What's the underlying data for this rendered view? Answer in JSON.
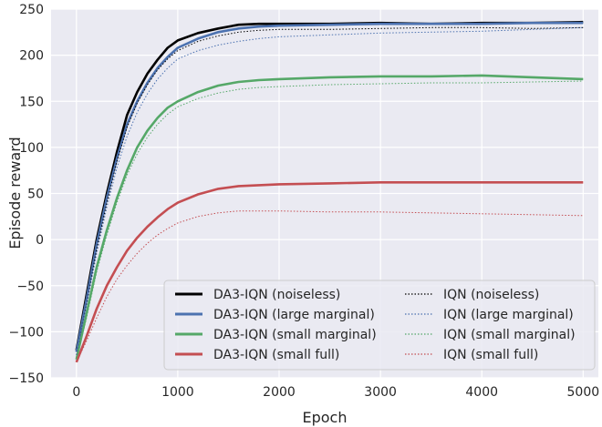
{
  "chart_data": {
    "type": "line",
    "title": "",
    "xlabel": "Epoch",
    "ylabel": "Episode reward",
    "xlim": [
      -250,
      5150
    ],
    "ylim": [
      -150,
      250
    ],
    "xticks": [
      0,
      1000,
      2000,
      3000,
      4000,
      5000
    ],
    "yticks": [
      -150,
      -100,
      -50,
      0,
      50,
      100,
      150,
      200,
      250
    ],
    "grid": true,
    "background": "#eaeaf2",
    "legend": {
      "placement": "bottom-right",
      "columns": 2
    },
    "series": [
      {
        "name": "DA3-IQN (noiseless)",
        "color": "#000000",
        "style": "solid",
        "x": [
          0,
          100,
          200,
          300,
          400,
          500,
          600,
          700,
          800,
          900,
          1000,
          1200,
          1400,
          1600,
          1800,
          2000,
          2500,
          3000,
          3500,
          4000,
          4500,
          5000
        ],
        "y": [
          -120,
          -60,
          0,
          50,
          95,
          135,
          160,
          180,
          195,
          208,
          216,
          224,
          229,
          233,
          234,
          234,
          234,
          235,
          234,
          235,
          235,
          236
        ]
      },
      {
        "name": "DA3-IQN (large marginal)",
        "color": "#4c72b0",
        "style": "solid",
        "x": [
          0,
          100,
          200,
          300,
          400,
          500,
          600,
          700,
          800,
          900,
          1000,
          1200,
          1400,
          1600,
          1800,
          2000,
          2500,
          3000,
          3500,
          4000,
          4500,
          5000
        ],
        "y": [
          -122,
          -65,
          -5,
          45,
          88,
          125,
          150,
          170,
          186,
          198,
          208,
          218,
          225,
          229,
          231,
          232,
          233,
          234,
          234,
          234,
          235,
          235
        ]
      },
      {
        "name": "DA3-IQN (small marginal)",
        "color": "#55a868",
        "style": "solid",
        "x": [
          0,
          100,
          200,
          300,
          400,
          500,
          600,
          700,
          800,
          900,
          1000,
          1200,
          1400,
          1600,
          1800,
          2000,
          2500,
          3000,
          3500,
          4000,
          4500,
          5000
        ],
        "y": [
          -130,
          -80,
          -30,
          10,
          45,
          75,
          100,
          118,
          132,
          143,
          150,
          160,
          167,
          171,
          173,
          174,
          176,
          177,
          177,
          178,
          176,
          174
        ]
      },
      {
        "name": "DA3-IQN (small full)",
        "color": "#c44e52",
        "style": "solid",
        "x": [
          0,
          100,
          200,
          300,
          400,
          500,
          600,
          700,
          800,
          900,
          1000,
          1200,
          1400,
          1600,
          1800,
          2000,
          2500,
          3000,
          3500,
          4000,
          4500,
          5000
        ],
        "y": [
          -133,
          -105,
          -75,
          -50,
          -30,
          -12,
          2,
          14,
          24,
          33,
          40,
          49,
          55,
          58,
          59,
          60,
          61,
          62,
          62,
          62,
          62,
          62
        ]
      },
      {
        "name": "IQN (noiseless)",
        "color": "#000000",
        "style": "dotted",
        "x": [
          0,
          100,
          200,
          300,
          400,
          500,
          600,
          700,
          800,
          900,
          1000,
          1200,
          1400,
          1600,
          1800,
          2000,
          2500,
          3000,
          3500,
          4000,
          4500,
          5000
        ],
        "y": [
          -125,
          -70,
          -10,
          40,
          85,
          122,
          148,
          168,
          184,
          196,
          205,
          215,
          221,
          225,
          227,
          228,
          228,
          229,
          230,
          230,
          229,
          230
        ]
      },
      {
        "name": "IQN (large marginal)",
        "color": "#4c72b0",
        "style": "dotted",
        "x": [
          0,
          100,
          200,
          300,
          400,
          500,
          600,
          700,
          800,
          900,
          1000,
          1200,
          1400,
          1600,
          1800,
          2000,
          2500,
          3000,
          3500,
          4000,
          4500,
          5000
        ],
        "y": [
          -125,
          -72,
          -15,
          35,
          78,
          112,
          138,
          158,
          174,
          186,
          196,
          205,
          211,
          215,
          218,
          220,
          222,
          224,
          225,
          226,
          228,
          230
        ]
      },
      {
        "name": "IQN (small marginal)",
        "color": "#55a868",
        "style": "dotted",
        "x": [
          0,
          100,
          200,
          300,
          400,
          500,
          600,
          700,
          800,
          900,
          1000,
          1200,
          1400,
          1600,
          1800,
          2000,
          2500,
          3000,
          3500,
          4000,
          4500,
          5000
        ],
        "y": [
          -130,
          -85,
          -35,
          5,
          40,
          70,
          93,
          111,
          125,
          136,
          144,
          153,
          159,
          163,
          165,
          166,
          168,
          169,
          170,
          170,
          171,
          172
        ]
      },
      {
        "name": "IQN (small full)",
        "color": "#c44e52",
        "style": "dotted",
        "x": [
          0,
          100,
          200,
          300,
          400,
          500,
          600,
          700,
          800,
          900,
          1000,
          1200,
          1400,
          1600,
          1800,
          2000,
          2500,
          3000,
          3500,
          4000,
          4500,
          5000
        ],
        "y": [
          -133,
          -110,
          -85,
          -62,
          -43,
          -28,
          -15,
          -4,
          5,
          12,
          18,
          25,
          29,
          31,
          31,
          31,
          30,
          30,
          29,
          28,
          27,
          26
        ]
      }
    ]
  }
}
